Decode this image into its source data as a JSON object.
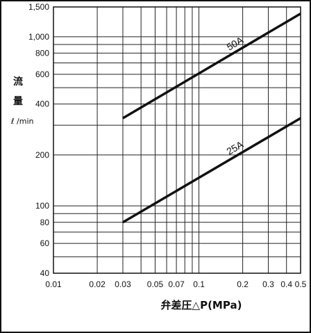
{
  "chart_data": {
    "type": "line",
    "xscale": "log",
    "yscale": "log",
    "xlim": [
      0.01,
      0.5
    ],
    "ylim": [
      40,
      1500
    ],
    "x_ticks": [
      0.01,
      0.02,
      0.03,
      0.05,
      0.07,
      0.1,
      0.2,
      0.3,
      0.4,
      0.5
    ],
    "x_tick_labels": [
      "0.01",
      "0.02",
      "0.03",
      "0.05",
      "0.07",
      "0.1",
      "0.2",
      "0.3",
      "0.4",
      "0.5"
    ],
    "x_grid": [
      0.01,
      0.02,
      0.03,
      0.04,
      0.05,
      0.06,
      0.07,
      0.08,
      0.09,
      0.1,
      0.2,
      0.3,
      0.4,
      0.5
    ],
    "y_ticks": [
      40,
      60,
      80,
      100,
      200,
      400,
      600,
      800,
      1000,
      1500
    ],
    "y_tick_labels": [
      "40",
      "60",
      "80",
      "100",
      "200",
      "400",
      "600",
      "800",
      "1,000",
      "1,500"
    ],
    "y_grid": [
      40,
      50,
      60,
      70,
      80,
      90,
      100,
      200,
      300,
      400,
      500,
      600,
      700,
      800,
      900,
      1000,
      1500
    ],
    "ylabel_line1": "流",
    "ylabel_line2": "量",
    "ylabel_unit": "ℓ /min",
    "xlabel": "弁差圧△P(MPa)",
    "grid": true,
    "series": [
      {
        "name": "50A",
        "x": [
          0.03,
          0.5
        ],
        "y": [
          330,
          1370
        ]
      },
      {
        "name": "25A",
        "x": [
          0.03,
          0.5
        ],
        "y": [
          80,
          330
        ]
      }
    ]
  }
}
